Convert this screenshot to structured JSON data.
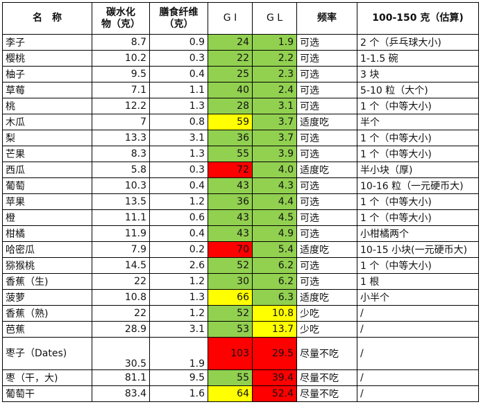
{
  "headers": {
    "name": "名　称",
    "carb": "碳水化\n物（克）",
    "fiber": "膳食纤维\n（克）",
    "gi": "G I",
    "gl": "G L",
    "freq": "频率",
    "portion": "100-150 克（估算)"
  },
  "colors": {
    "green": "#92d050",
    "yellow": "#ffff00",
    "red": "#ff0000"
  },
  "rows": [
    {
      "name": "李子",
      "carb": "8.7",
      "fiber": "0.9",
      "gi": "24",
      "gl": "1.9",
      "freq": "可选",
      "portion": "2 个（乒乓球大小)",
      "gi_color": "green",
      "gl_color": "green"
    },
    {
      "name": "樱桃",
      "carb": "10.2",
      "fiber": "0.3",
      "gi": "22",
      "gl": "2.2",
      "freq": "可选",
      "portion": "1-1.5 碗",
      "gi_color": "green",
      "gl_color": "green"
    },
    {
      "name": "柚子",
      "carb": "9.5",
      "fiber": "0.4",
      "gi": "25",
      "gl": "2.3",
      "freq": "可选",
      "portion": "3 块",
      "gi_color": "green",
      "gl_color": "green"
    },
    {
      "name": "草莓",
      "carb": "7.1",
      "fiber": "1.1",
      "gi": "40",
      "gl": "2.4",
      "freq": "可选",
      "portion": "5-10 粒（大个)",
      "gi_color": "green",
      "gl_color": "green"
    },
    {
      "name": "桃",
      "carb": "12.2",
      "fiber": "1.3",
      "gi": "28",
      "gl": "3.1",
      "freq": "可选",
      "portion": "1 个（中等大小)",
      "gi_color": "green",
      "gl_color": "green"
    },
    {
      "name": "木瓜",
      "carb": "7",
      "fiber": "0.8",
      "gi": "59",
      "gl": "3.7",
      "freq": "适度吃",
      "portion": "半个",
      "gi_color": "yellow",
      "gl_color": "green"
    },
    {
      "name": "梨",
      "carb": "13.3",
      "fiber": "3.1",
      "gi": "36",
      "gl": "3.7",
      "freq": "可选",
      "portion": "1 个（中等大小)",
      "gi_color": "green",
      "gl_color": "green"
    },
    {
      "name": "芒果",
      "carb": "8.3",
      "fiber": "1.3",
      "gi": "55",
      "gl": "3.9",
      "freq": "可选",
      "portion": "1 个（中等大小)",
      "gi_color": "green",
      "gl_color": "green"
    },
    {
      "name": "西瓜",
      "carb": "5.8",
      "fiber": "0.3",
      "gi": "72",
      "gl": "4.0",
      "freq": "适度吃",
      "portion": "半小块（厚)",
      "gi_color": "red",
      "gl_color": "green"
    },
    {
      "name": "葡萄",
      "carb": "10.3",
      "fiber": "0.4",
      "gi": "43",
      "gl": "4.3",
      "freq": "可选",
      "portion": "10-16 粒（一元硬币大)",
      "gi_color": "green",
      "gl_color": "green"
    },
    {
      "name": "苹果",
      "carb": "13.5",
      "fiber": "1.2",
      "gi": "36",
      "gl": "4.4",
      "freq": "可选",
      "portion": "1 个（中等大小)",
      "gi_color": "green",
      "gl_color": "green"
    },
    {
      "name": "橙",
      "carb": "11.1",
      "fiber": "0.6",
      "gi": "43",
      "gl": "4.5",
      "freq": "可选",
      "portion": "1 个（中等大小)",
      "gi_color": "green",
      "gl_color": "green"
    },
    {
      "name": "柑橘",
      "carb": "11.9",
      "fiber": "0.4",
      "gi": "43",
      "gl": "4.9",
      "freq": "可选",
      "portion": "小柑橘两个",
      "gi_color": "green",
      "gl_color": "green"
    },
    {
      "name": "哈密瓜",
      "carb": "7.9",
      "fiber": "0.2",
      "gi": "70",
      "gl": "5.4",
      "freq": "适度吃",
      "portion": "10-15 小块(一元硬币大)",
      "gi_color": "red",
      "gl_color": "green"
    },
    {
      "name": "猕猴桃",
      "carb": "14.5",
      "fiber": "2.6",
      "gi": "52",
      "gl": "6.2",
      "freq": "可选",
      "portion": "1 个（中等大小)",
      "gi_color": "green",
      "gl_color": "green"
    },
    {
      "name": "香蕉（生)",
      "carb": "22",
      "fiber": "1.2",
      "gi": "30",
      "gl": "6.2",
      "freq": "可选",
      "portion": "1 根",
      "gi_color": "green",
      "gl_color": "green"
    },
    {
      "name": "菠萝",
      "carb": "10.8",
      "fiber": "1.3",
      "gi": "66",
      "gl": "6.3",
      "freq": "适度吃",
      "portion": "小半个",
      "gi_color": "yellow",
      "gl_color": "green"
    },
    {
      "name": "香蕉（熟)",
      "carb": "22",
      "fiber": "1.2",
      "gi": "52",
      "gl": "10.8",
      "freq": "少吃",
      "portion": "/",
      "gi_color": "green",
      "gl_color": "yellow"
    },
    {
      "name": "芭蕉",
      "carb": "28.9",
      "fiber": "3.1",
      "gi": "53",
      "gl": "13.7",
      "freq": "少吃",
      "portion": "/",
      "gi_color": "green",
      "gl_color": "yellow"
    },
    {
      "name": "枣子（Dates)",
      "carb": "30.5",
      "fiber": "1.9",
      "gi": "103",
      "gl": "29.5",
      "freq": "尽量不吃",
      "portion": "/",
      "gi_color": "red",
      "gl_color": "red",
      "tall": true
    },
    {
      "name": "枣（干，大)",
      "carb": "81.1",
      "fiber": "9.5",
      "gi": "55",
      "gl": "39.4",
      "freq": "尽量不吃",
      "portion": "/",
      "gi_color": "green",
      "gl_color": "red"
    },
    {
      "name": "葡萄干",
      "carb": "83.4",
      "fiber": "1.6",
      "gi": "64",
      "gl": "52.4",
      "freq": "尽量不吃",
      "portion": "/",
      "gi_color": "yellow",
      "gl_color": "red"
    }
  ]
}
